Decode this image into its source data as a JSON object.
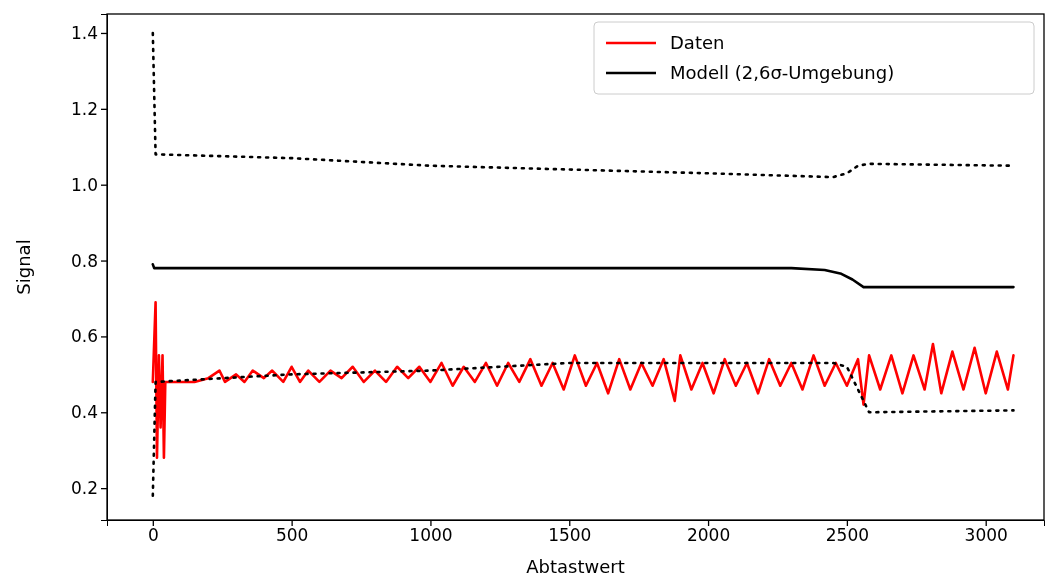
{
  "chart_data": {
    "type": "line",
    "xlabel": "Abtastwert",
    "ylabel": "Signal",
    "xlim": [
      -165,
      3210
    ],
    "ylim": [
      0.116,
      1.45
    ],
    "xticks": [
      0,
      500,
      1000,
      1500,
      2000,
      2500,
      3000
    ],
    "yticks": [
      {
        "value": 0.2,
        "label": "0.2"
      },
      {
        "value": 0.4,
        "label": "0.4"
      },
      {
        "value": 0.6,
        "label": "0.6"
      },
      {
        "value": 0.8,
        "label": "0.8"
      },
      {
        "value": 1.0,
        "label": "1.0"
      },
      {
        "value": 1.2,
        "label": "1.2"
      },
      {
        "value": 1.4,
        "label": "1.4"
      }
    ],
    "grid": false,
    "legend": "top right",
    "series": [
      {
        "name": "Daten",
        "color": "#ff0000",
        "line_style": "solid",
        "x": [
          0,
          10,
          15,
          22,
          28,
          35,
          40,
          45,
          100,
          150,
          200,
          240,
          260,
          300,
          330,
          360,
          400,
          430,
          470,
          500,
          530,
          560,
          600,
          640,
          680,
          720,
          760,
          800,
          840,
          880,
          920,
          960,
          1000,
          1040,
          1080,
          1120,
          1160,
          1200,
          1240,
          1280,
          1320,
          1360,
          1400,
          1440,
          1480,
          1520,
          1560,
          1600,
          1640,
          1680,
          1720,
          1760,
          1800,
          1840,
          1880,
          1900,
          1940,
          1980,
          2020,
          2060,
          2100,
          2140,
          2180,
          2220,
          2260,
          2300,
          2340,
          2380,
          2420,
          2460,
          2500,
          2540,
          2560,
          2580,
          2620,
          2660,
          2700,
          2740,
          2780,
          2810,
          2840,
          2880,
          2920,
          2960,
          3000,
          3040,
          3080,
          3100
        ],
        "values": [
          0.48,
          0.69,
          0.28,
          0.55,
          0.36,
          0.55,
          0.28,
          0.48,
          0.48,
          0.48,
          0.49,
          0.51,
          0.48,
          0.5,
          0.48,
          0.51,
          0.49,
          0.51,
          0.48,
          0.52,
          0.48,
          0.51,
          0.48,
          0.51,
          0.49,
          0.52,
          0.48,
          0.51,
          0.48,
          0.52,
          0.49,
          0.52,
          0.48,
          0.53,
          0.47,
          0.52,
          0.48,
          0.53,
          0.47,
          0.53,
          0.48,
          0.54,
          0.47,
          0.53,
          0.46,
          0.55,
          0.47,
          0.53,
          0.45,
          0.54,
          0.46,
          0.53,
          0.47,
          0.54,
          0.43,
          0.55,
          0.46,
          0.53,
          0.45,
          0.54,
          0.47,
          0.53,
          0.45,
          0.54,
          0.47,
          0.53,
          0.46,
          0.55,
          0.47,
          0.53,
          0.47,
          0.54,
          0.42,
          0.55,
          0.46,
          0.55,
          0.45,
          0.55,
          0.46,
          0.58,
          0.45,
          0.56,
          0.46,
          0.57,
          0.45,
          0.56,
          0.46,
          0.55
        ]
      },
      {
        "name": "Modell (2,6σ-Umgebung)",
        "color": "#000000",
        "line_style": "solid",
        "x": [
          0,
          5,
          500,
          1000,
          1500,
          2000,
          2300,
          2420,
          2480,
          2520,
          2560,
          2600,
          3100
        ],
        "values": [
          0.79,
          0.78,
          0.78,
          0.78,
          0.78,
          0.78,
          0.78,
          0.775,
          0.765,
          0.75,
          0.73,
          0.73,
          0.73
        ]
      },
      {
        "color": "#000000",
        "line_style": "dotted",
        "x": [
          0,
          10,
          500,
          1000,
          1500,
          2000,
          2450,
          2500,
          2540,
          2580,
          3100
        ],
        "values": [
          1.4,
          1.08,
          1.07,
          1.05,
          1.04,
          1.03,
          1.02,
          1.03,
          1.05,
          1.055,
          1.05
        ]
      },
      {
        "color": "#000000",
        "line_style": "dotted",
        "x": [
          0,
          10,
          500,
          1000,
          1500,
          2000,
          2450,
          2500,
          2540,
          2580,
          3100
        ],
        "values": [
          0.18,
          0.48,
          0.5,
          0.51,
          0.53,
          0.53,
          0.53,
          0.52,
          0.46,
          0.4,
          0.405
        ]
      }
    ]
  }
}
